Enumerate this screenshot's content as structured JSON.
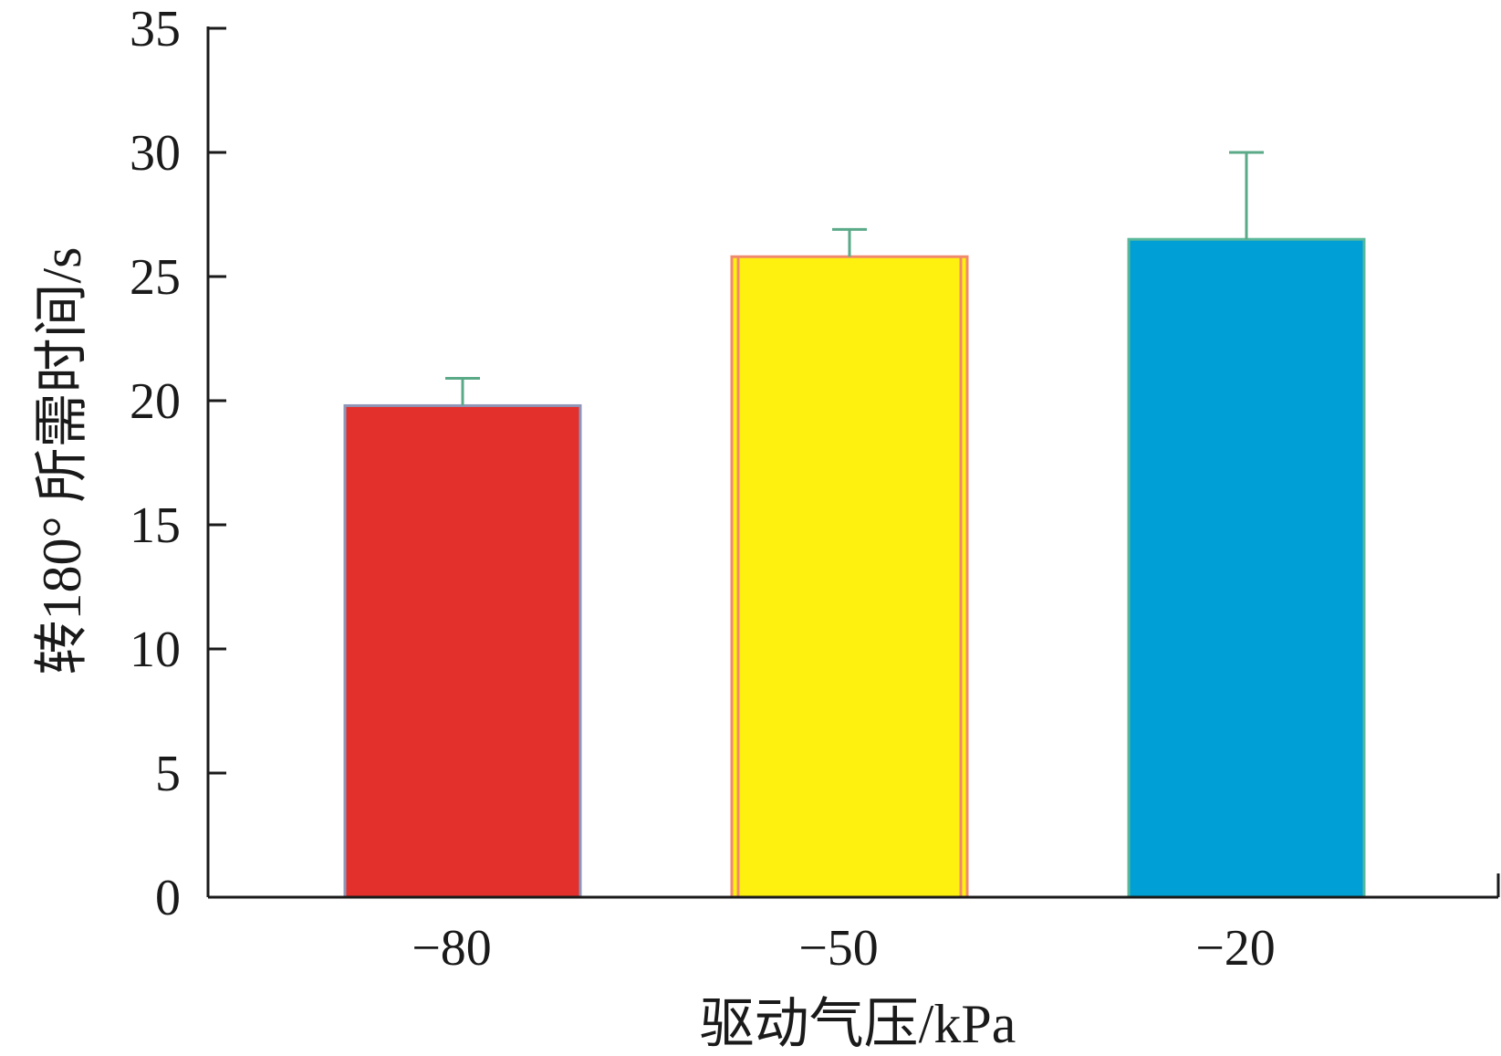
{
  "chart_data": {
    "type": "bar",
    "categories": [
      "−80",
      "−50",
      "−20"
    ],
    "values": [
      19.8,
      25.8,
      26.5
    ],
    "error_upper": [
      20.9,
      26.9,
      30.0
    ],
    "xlabel": "驱动气压/kPa",
    "ylabel": "转180° 所需时间/s",
    "ylim": [
      0,
      35
    ],
    "yticks": [
      0,
      5,
      10,
      15,
      20,
      25,
      30,
      35
    ],
    "grid": false,
    "legend": "none",
    "colors": {
      "bars": [
        "#e3302c",
        "#fff10f",
        "#009fd6"
      ],
      "bar_edges": [
        "#8f96b8",
        "#f08a6e",
        "#5ab89a"
      ],
      "error_bars": "#5aaa88",
      "axis": "#1a1a1a"
    }
  }
}
